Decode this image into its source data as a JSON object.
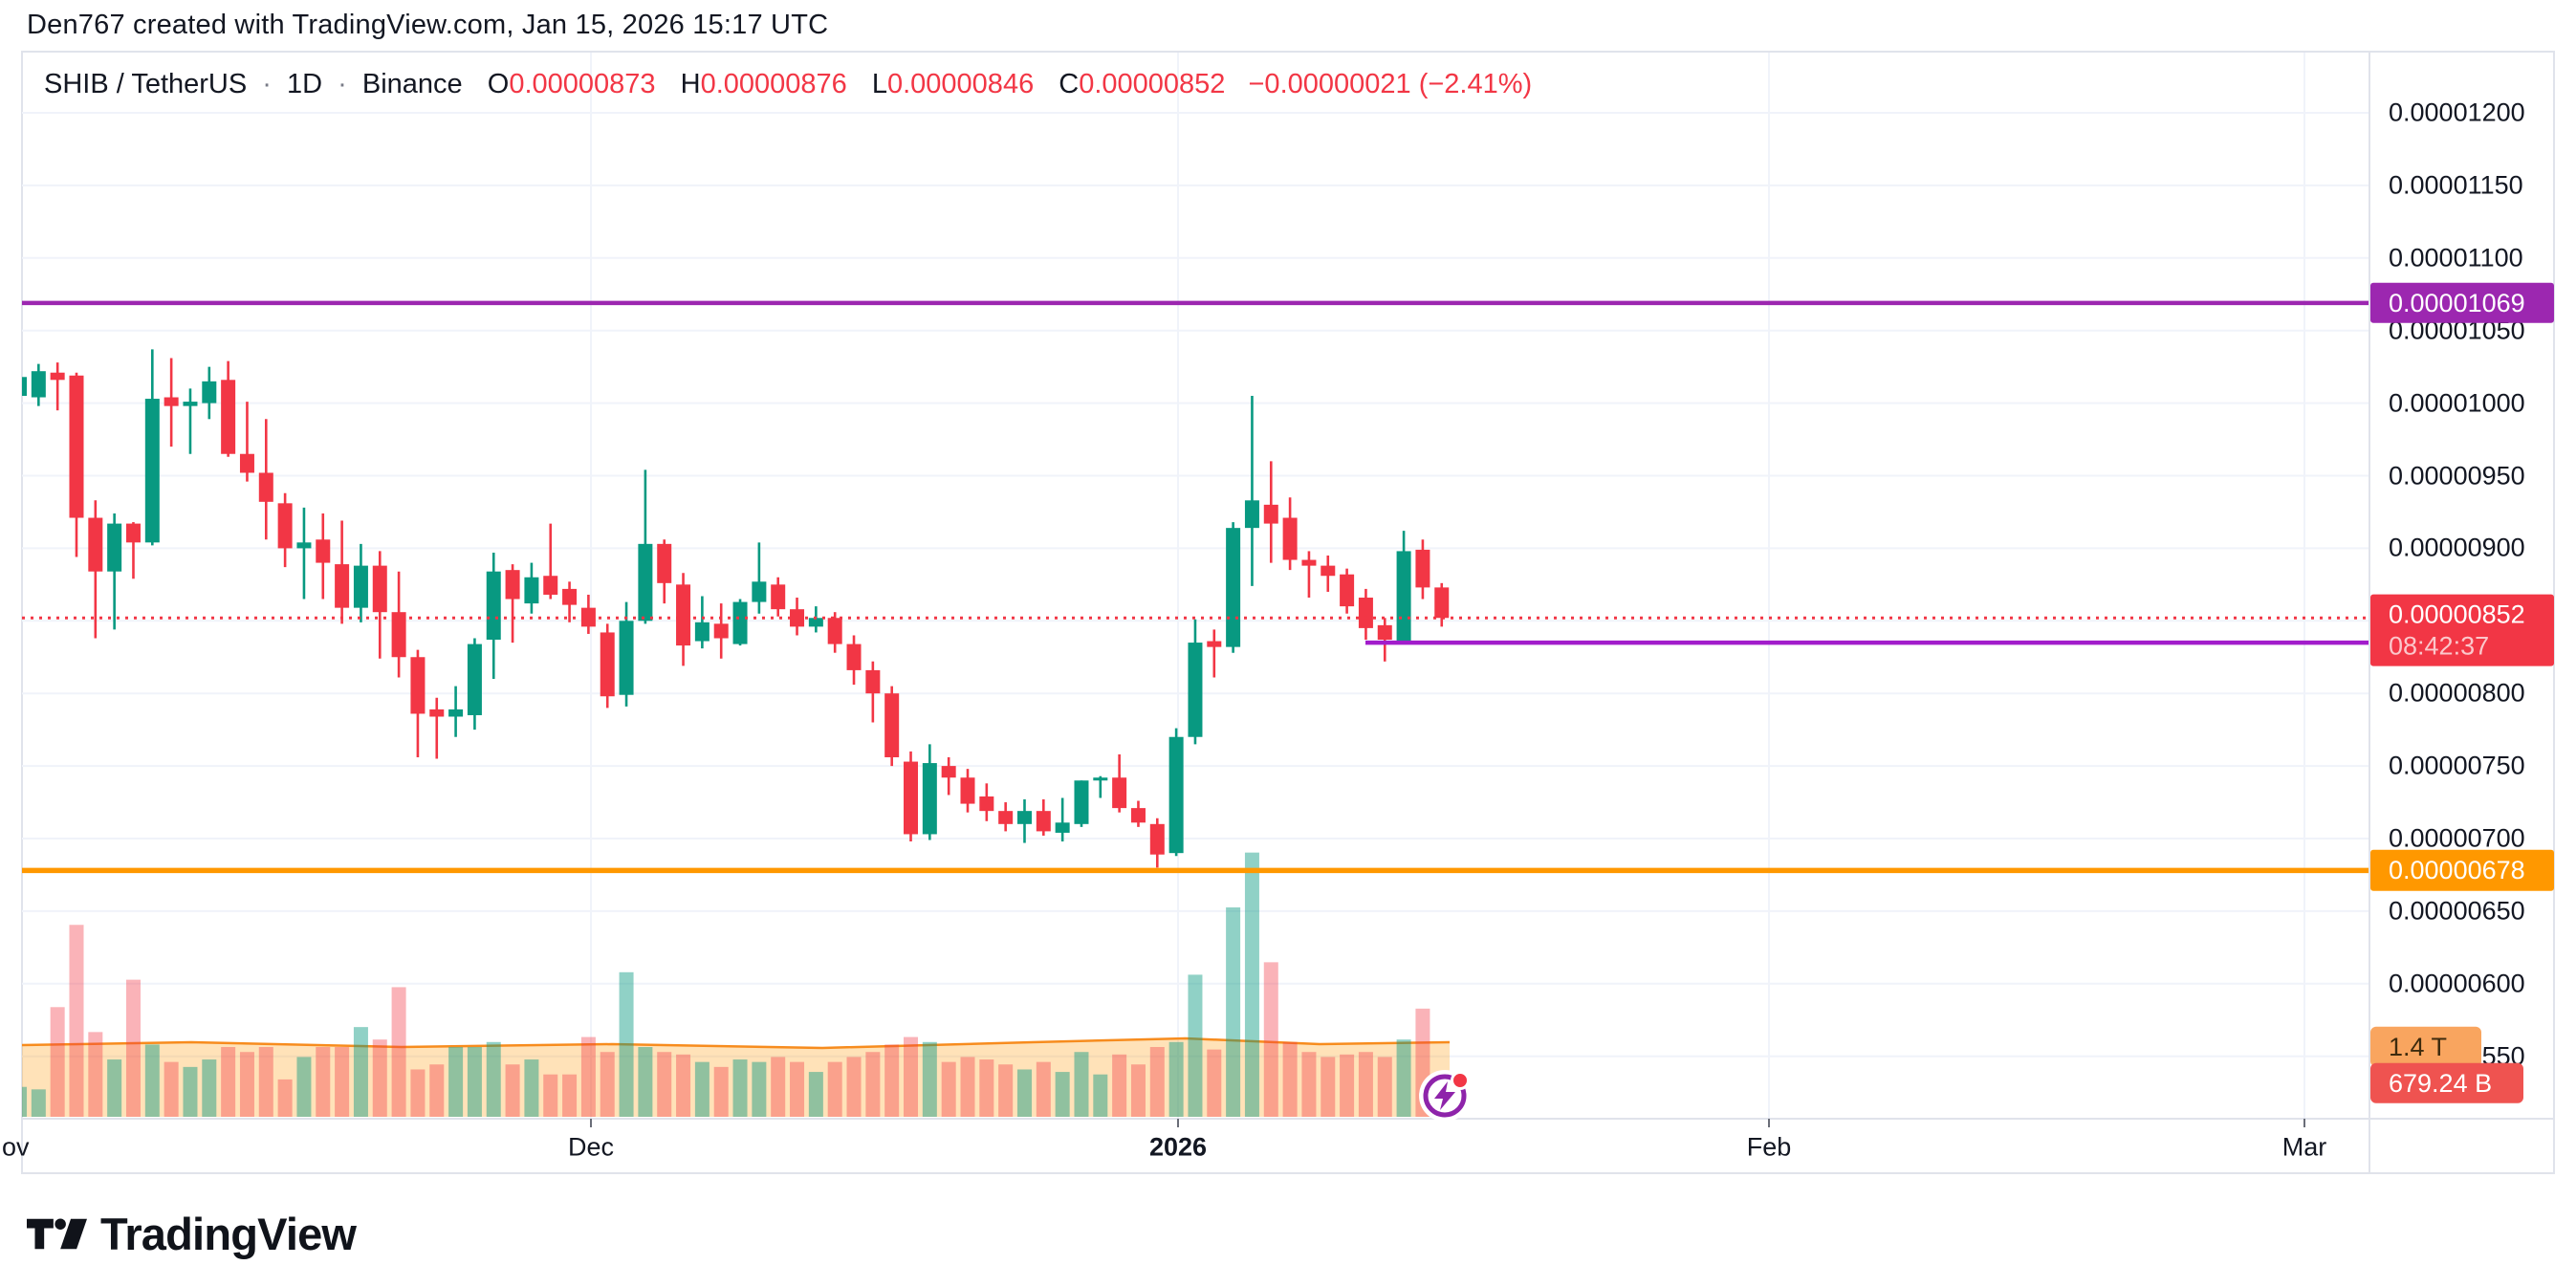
{
  "attribution": "Den767 created with TradingView.com, Jan 15, 2026 15:17 UTC",
  "legend": {
    "symbol": "SHIB / TetherUS",
    "sep": "·",
    "timeframe": "1D",
    "exchange": "Binance",
    "o_label": "O",
    "o": "0.00000873",
    "h_label": "H",
    "h": "0.00000876",
    "l_label": "L",
    "l": "0.00000846",
    "c_label": "C",
    "c": "0.00000852",
    "change": "−0.00000021 (−2.41%)"
  },
  "footer": {
    "brand": "TradingView"
  },
  "colors": {
    "up": "#089981",
    "down": "#F23645",
    "grid": "#F0F3FA",
    "border": "#E0E3EB",
    "text": "#131722",
    "level_purple": "#9C27B0",
    "level_magenta": "#A21CCB",
    "level_orange": "#FF9800",
    "last_price": "#F23645",
    "vol_up": "rgba(8,153,129,0.45)",
    "vol_down": "rgba(242,54,69,0.38)",
    "vol_band_fill": "rgba(255,152,0,0.28)",
    "vol_band_line": "#F78C1E"
  },
  "chart_data": {
    "type": "candlestick+volume",
    "title": "SHIB / TetherUS · 1D · Binance",
    "note": "prices in 1e-8 USDT units; volumes in billions SHIB",
    "ylim": [
      540,
      1230
    ],
    "grid": true,
    "candles": [
      [
        1005,
        1022,
        996,
        1018
      ],
      [
        1004,
        1027,
        998,
        1022
      ],
      [
        1021,
        1028,
        995,
        1016
      ],
      [
        1019,
        1021,
        894,
        921
      ],
      [
        921,
        933,
        838,
        884
      ],
      [
        884,
        924,
        844,
        917
      ],
      [
        917,
        918,
        879,
        904
      ],
      [
        904,
        1037,
        902,
        1003
      ],
      [
        1004,
        1031,
        970,
        998
      ],
      [
        998,
        1010,
        965,
        1001
      ],
      [
        1000,
        1025,
        989,
        1015
      ],
      [
        1016,
        1029,
        963,
        965
      ],
      [
        965,
        1001,
        946,
        952
      ],
      [
        952,
        989,
        906,
        932
      ],
      [
        931,
        938,
        887,
        900
      ],
      [
        900,
        928,
        865,
        904
      ],
      [
        906,
        924,
        865,
        890
      ],
      [
        889,
        919,
        848,
        859
      ],
      [
        859,
        903,
        849,
        888
      ],
      [
        888,
        898,
        824,
        856
      ],
      [
        856,
        884,
        811,
        825
      ],
      [
        825,
        830,
        756,
        786
      ],
      [
        789,
        797,
        755,
        784
      ],
      [
        784,
        805,
        770,
        789
      ],
      [
        785,
        838,
        775,
        834
      ],
      [
        837,
        897,
        810,
        884
      ],
      [
        885,
        889,
        835,
        865
      ],
      [
        862,
        890,
        855,
        880
      ],
      [
        881,
        917,
        865,
        868
      ],
      [
        872,
        877,
        849,
        861
      ],
      [
        859,
        868,
        841,
        846
      ],
      [
        842,
        848,
        790,
        798
      ],
      [
        799,
        863,
        791,
        850
      ],
      [
        850,
        954,
        848,
        903
      ],
      [
        903,
        906,
        862,
        876
      ],
      [
        875,
        883,
        819,
        833
      ],
      [
        836,
        867,
        831,
        849
      ],
      [
        848,
        862,
        824,
        838
      ],
      [
        834,
        865,
        833,
        863
      ],
      [
        863,
        904,
        855,
        877
      ],
      [
        875,
        880,
        853,
        858
      ],
      [
        858,
        866,
        840,
        846
      ],
      [
        846,
        860,
        842,
        852
      ],
      [
        852,
        856,
        828,
        834
      ],
      [
        834,
        840,
        806,
        816
      ],
      [
        816,
        822,
        780,
        800
      ],
      [
        800,
        805,
        750,
        756
      ],
      [
        753,
        760,
        698,
        703
      ],
      [
        703,
        765,
        699,
        752
      ],
      [
        750,
        756,
        730,
        742
      ],
      [
        742,
        748,
        718,
        724
      ],
      [
        729,
        738,
        712,
        719
      ],
      [
        719,
        725,
        705,
        710
      ],
      [
        710,
        727,
        697,
        719
      ],
      [
        719,
        727,
        702,
        705
      ],
      [
        704,
        728,
        698,
        711
      ],
      [
        710,
        740,
        708,
        740
      ],
      [
        740,
        743,
        728,
        742
      ],
      [
        742,
        758,
        718,
        721
      ],
      [
        721,
        726,
        708,
        711
      ],
      [
        710,
        714,
        680,
        689
      ],
      [
        690,
        776,
        688,
        770
      ],
      [
        770,
        851,
        765,
        835
      ],
      [
        836,
        844,
        811,
        832
      ],
      [
        832,
        918,
        828,
        914
      ],
      [
        914,
        1005,
        874,
        933
      ],
      [
        930,
        960,
        890,
        917
      ],
      [
        921,
        935,
        885,
        892
      ],
      [
        892,
        898,
        866,
        888
      ],
      [
        888,
        895,
        870,
        881
      ],
      [
        882,
        886,
        855,
        860
      ],
      [
        866,
        872,
        837,
        845
      ],
      [
        847,
        852,
        822,
        837
      ],
      [
        836,
        912,
        834,
        898
      ],
      [
        899,
        906,
        865,
        873
      ],
      [
        873,
        876,
        846,
        852
      ]
    ],
    "volumes_billion": [
      600,
      550,
      2200,
      3850,
      1700,
      1150,
      2750,
      1450,
      1100,
      1000,
      1150,
      1400,
      1300,
      1400,
      750,
      1200,
      1400,
      1400,
      1800,
      1550,
      2600,
      950,
      1050,
      1400,
      1400,
      1500,
      1050,
      1150,
      850,
      850,
      1600,
      1300,
      2900,
      1400,
      1300,
      1250,
      1100,
      1000,
      1150,
      1100,
      1200,
      1100,
      900,
      1100,
      1200,
      1300,
      1450,
      1600,
      1500,
      1100,
      1200,
      1150,
      1050,
      950,
      1100,
      900,
      1300,
      850,
      1250,
      1050,
      1400,
      1500,
      2850,
      1350,
      4200,
      5300,
      3100,
      1500,
      1300,
      1200,
      1250,
      1300,
      1200,
      1550,
      2170,
      679.24
    ],
    "volume_ma_billion": 1400,
    "price_ticks": [
      {
        "label": "0.00001200",
        "price": 1200
      },
      {
        "label": "0.00001150",
        "price": 1150
      },
      {
        "label": "0.00001100",
        "price": 1100
      },
      {
        "label": "0.00001050",
        "price": 1050
      },
      {
        "label": "0.00001000",
        "price": 1000
      },
      {
        "label": "0.00000950",
        "price": 950
      },
      {
        "label": "0.00000900",
        "price": 900
      },
      {
        "label": "0.00000800",
        "price": 800
      },
      {
        "label": "0.00000750",
        "price": 750
      },
      {
        "label": "0.00000700",
        "price": 700
      },
      {
        "label": "0.00000650",
        "price": 650
      },
      {
        "label": "0.00000600",
        "price": 600
      },
      {
        "label": "0.00000550",
        "price": 550
      }
    ],
    "time_ticks": [
      {
        "label": "ov",
        "x": 2,
        "edge": true
      },
      {
        "label": "Dec",
        "x": 618
      },
      {
        "label": "2026",
        "x": 1232,
        "bold": true
      },
      {
        "label": "Feb",
        "x": 1850
      },
      {
        "label": "Mar",
        "x": 2410
      }
    ],
    "levels": [
      {
        "label": "0.00001069",
        "price": 1069,
        "color": "#9C27B0",
        "from_x": 23,
        "width": 4.5
      },
      {
        "label": "0.00000835",
        "price": 835,
        "color": "#A21CCB",
        "from_x": 1428,
        "width": 4.5
      },
      {
        "label": "0.00000678",
        "price": 678,
        "color": "#FF9800",
        "from_x": 23,
        "width": 5.5
      }
    ],
    "last_price": {
      "label": "0.00000852",
      "price": 852,
      "countdown": "08:42:37",
      "color": "#F23645"
    },
    "volume_labels": [
      {
        "label": "1.4 T",
        "value_b": 1400,
        "bg": "#F9A55F",
        "fg": "#3E2B0E"
      },
      {
        "label": "679.24 B",
        "value_b": 679.24,
        "bg": "#EF5350",
        "fg": "#FFFFFF"
      }
    ]
  }
}
